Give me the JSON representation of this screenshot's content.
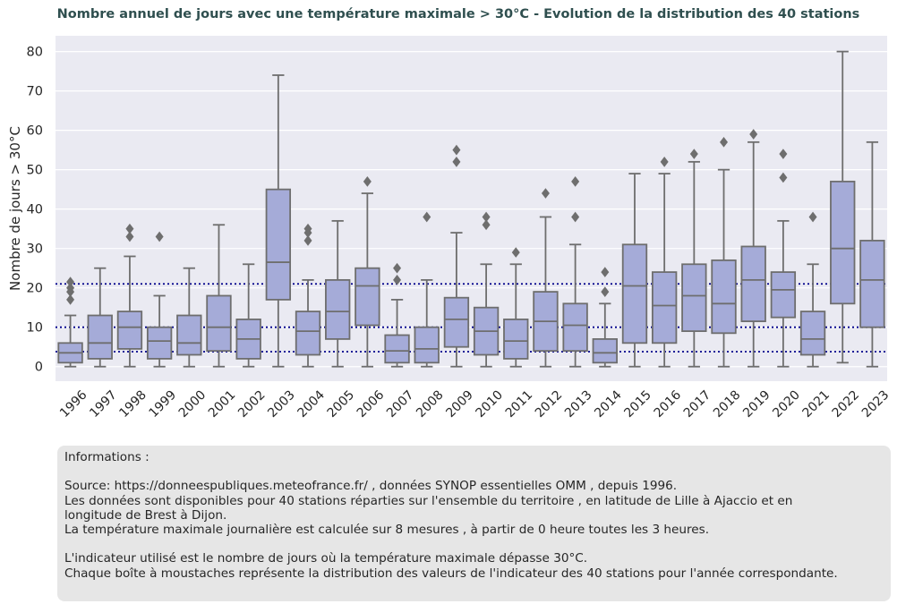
{
  "chart_data": {
    "type": "boxplot",
    "title": "Nombre annuel de jours avec une température maximale > 30°C - Evolution de la distribution des 40 stations",
    "xlabel": "",
    "ylabel": "Nombre de jours > 30°C",
    "ylim": [
      -3.7,
      84
    ],
    "yticks": [
      0,
      10,
      20,
      30,
      40,
      50,
      60,
      70,
      80
    ],
    "grid": true,
    "box_color": "#a5abd8",
    "line_color": "#6e6e6e",
    "background_color": "#eaeaf2",
    "reference_line_color": "#00008b",
    "reference_lines": [
      3.8,
      10,
      21
    ],
    "categories": [
      "1996",
      "1997",
      "1998",
      "1999",
      "2000",
      "2001",
      "2002",
      "2003",
      "2004",
      "2005",
      "2006",
      "2007",
      "2008",
      "2009",
      "2010",
      "2011",
      "2012",
      "2013",
      "2014",
      "2015",
      "2016",
      "2017",
      "2018",
      "2019",
      "2020",
      "2021",
      "2022",
      "2023"
    ],
    "boxes": [
      {
        "year": "1996",
        "min": 0,
        "q1": 1,
        "median": 3.5,
        "q3": 6,
        "max": 13,
        "outliers": [
          17,
          19,
          20,
          21.5
        ]
      },
      {
        "year": "1997",
        "min": 0,
        "q1": 2,
        "median": 6,
        "q3": 13,
        "max": 25,
        "outliers": []
      },
      {
        "year": "1998",
        "min": 0,
        "q1": 4.5,
        "median": 10,
        "q3": 14,
        "max": 28,
        "outliers": [
          33,
          35
        ]
      },
      {
        "year": "1999",
        "min": 0,
        "q1": 2,
        "median": 6.5,
        "q3": 10,
        "max": 18,
        "outliers": [
          33
        ]
      },
      {
        "year": "2000",
        "min": 0,
        "q1": 3,
        "median": 6,
        "q3": 13,
        "max": 25,
        "outliers": []
      },
      {
        "year": "2001",
        "min": 0,
        "q1": 4,
        "median": 10,
        "q3": 18,
        "max": 36,
        "outliers": []
      },
      {
        "year": "2002",
        "min": 0,
        "q1": 2,
        "median": 7,
        "q3": 12,
        "max": 26,
        "outliers": []
      },
      {
        "year": "2003",
        "min": 0,
        "q1": 17,
        "median": 26.5,
        "q3": 45,
        "max": 74,
        "outliers": []
      },
      {
        "year": "2004",
        "min": 0,
        "q1": 3,
        "median": 9,
        "q3": 14,
        "max": 22,
        "outliers": [
          32,
          34,
          35
        ]
      },
      {
        "year": "2005",
        "min": 0,
        "q1": 7,
        "median": 14,
        "q3": 22,
        "max": 37,
        "outliers": []
      },
      {
        "year": "2006",
        "min": 0,
        "q1": 10.5,
        "median": 20.5,
        "q3": 25,
        "max": 44,
        "outliers": [
          47
        ]
      },
      {
        "year": "2007",
        "min": 0,
        "q1": 1,
        "median": 4,
        "q3": 8,
        "max": 17,
        "outliers": [
          22,
          25
        ]
      },
      {
        "year": "2008",
        "min": 0,
        "q1": 1,
        "median": 4.5,
        "q3": 10,
        "max": 22,
        "outliers": [
          38
        ]
      },
      {
        "year": "2009",
        "min": 0,
        "q1": 5,
        "median": 12,
        "q3": 17.5,
        "max": 34,
        "outliers": [
          52,
          55
        ]
      },
      {
        "year": "2010",
        "min": 0,
        "q1": 3,
        "median": 9,
        "q3": 15,
        "max": 26,
        "outliers": [
          36,
          38
        ]
      },
      {
        "year": "2011",
        "min": 0,
        "q1": 2,
        "median": 6.5,
        "q3": 12,
        "max": 26,
        "outliers": [
          29
        ]
      },
      {
        "year": "2012",
        "min": 0,
        "q1": 4,
        "median": 11.5,
        "q3": 19,
        "max": 38,
        "outliers": [
          44
        ]
      },
      {
        "year": "2013",
        "min": 0,
        "q1": 4,
        "median": 10.5,
        "q3": 16,
        "max": 31,
        "outliers": [
          38,
          47
        ]
      },
      {
        "year": "2014",
        "min": 0,
        "q1": 1,
        "median": 3.5,
        "q3": 7,
        "max": 16,
        "outliers": [
          19,
          24
        ]
      },
      {
        "year": "2015",
        "min": 0,
        "q1": 6,
        "median": 20.5,
        "q3": 31,
        "max": 49,
        "outliers": []
      },
      {
        "year": "2016",
        "min": 0,
        "q1": 6,
        "median": 15.5,
        "q3": 24,
        "max": 49,
        "outliers": [
          52
        ]
      },
      {
        "year": "2017",
        "min": 0,
        "q1": 9,
        "median": 18,
        "q3": 26,
        "max": 52,
        "outliers": [
          54
        ]
      },
      {
        "year": "2018",
        "min": 0,
        "q1": 8.5,
        "median": 16,
        "q3": 27,
        "max": 50,
        "outliers": [
          57
        ]
      },
      {
        "year": "2019",
        "min": 0,
        "q1": 11.5,
        "median": 22,
        "q3": 30.5,
        "max": 57,
        "outliers": [
          59
        ]
      },
      {
        "year": "2020",
        "min": 0,
        "q1": 12.5,
        "median": 19.5,
        "q3": 24,
        "max": 37,
        "outliers": [
          48,
          54
        ]
      },
      {
        "year": "2021",
        "min": 0,
        "q1": 3,
        "median": 7,
        "q3": 14,
        "max": 26,
        "outliers": [
          38
        ]
      },
      {
        "year": "2022",
        "min": 1,
        "q1": 16,
        "median": 30,
        "q3": 47,
        "max": 80,
        "outliers": []
      },
      {
        "year": "2023",
        "min": 0,
        "q1": 10,
        "median": 22,
        "q3": 32,
        "max": 57,
        "outliers": []
      }
    ]
  },
  "info_panel": {
    "heading": "Informations :",
    "source": "Source: https://donneespubliques.meteofrance.fr/ , données SYNOP essentielles OMM , depuis 1996.",
    "stations": "Les données sont disponibles pour 40 stations réparties sur l'ensemble du territoire , en latitude de Lille à Ajaccio et en longitude de Brest à Dijon.",
    "measure": "La température maximale journalière est calculée sur 8 mesures , à partir de 0 heure toutes les 3 heures.",
    "indicator": "L'indicateur utilisé est le nombre de jours où la température maximale dépasse 30°C.",
    "boxes_note": "Chaque boîte à moustaches représente la distribution des valeurs de l'indicateur des 40 stations pour l'année correspondante."
  }
}
